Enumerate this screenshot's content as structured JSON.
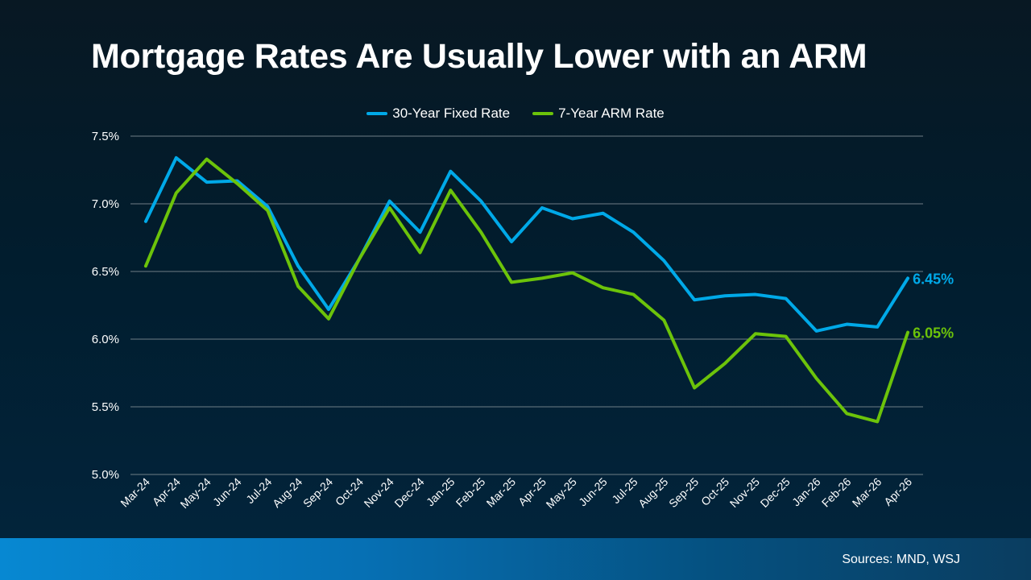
{
  "chart_data": {
    "type": "line",
    "title": "Mortgage Rates Are Usually Lower with an ARM",
    "categories": [
      "Mar-24",
      "Apr-24",
      "May-24",
      "Jun-24",
      "Jul-24",
      "Aug-24",
      "Sep-24",
      "Oct-24",
      "Nov-24",
      "Dec-24",
      "Jan-25",
      "Feb-25",
      "Mar-25",
      "Apr-25",
      "May-25",
      "Jun-25",
      "Jul-25",
      "Aug-25",
      "Sep-25",
      "Oct-25",
      "Nov-25",
      "Dec-25",
      "Jan-26",
      "Feb-26",
      "Mar-26",
      "Apr-26"
    ],
    "series": [
      {
        "name": "30-Year Fixed Rate",
        "color": "#00a9e8",
        "end_label": "6.45%",
        "values": [
          6.87,
          7.34,
          7.16,
          7.17,
          6.98,
          6.54,
          6.22,
          6.59,
          7.02,
          6.79,
          7.24,
          7.02,
          6.72,
          6.97,
          6.89,
          6.93,
          6.79,
          6.58,
          6.29,
          6.32,
          6.33,
          6.3,
          6.06,
          6.11,
          6.09,
          6.45
        ]
      },
      {
        "name": "7-Year ARM Rate",
        "color": "#6cc30a",
        "end_label": "6.05%",
        "values": [
          6.54,
          7.08,
          7.33,
          7.15,
          6.95,
          6.39,
          6.15,
          6.59,
          6.97,
          6.64,
          7.1,
          6.79,
          6.42,
          6.45,
          6.49,
          6.38,
          6.33,
          6.14,
          5.64,
          5.82,
          6.04,
          6.02,
          5.71,
          5.45,
          5.39,
          6.05
        ]
      }
    ],
    "ylim": [
      5.0,
      7.5
    ],
    "yticks": [
      "5.0%",
      "5.5%",
      "6.0%",
      "6.5%",
      "7.0%",
      "7.5%"
    ],
    "ytick_values": [
      5.0,
      5.5,
      6.0,
      6.5,
      7.0,
      7.5
    ],
    "grid": true,
    "legend": "top-center",
    "xlabel": "",
    "ylabel": ""
  },
  "footer": {
    "source": "Sources: MND, WSJ"
  }
}
